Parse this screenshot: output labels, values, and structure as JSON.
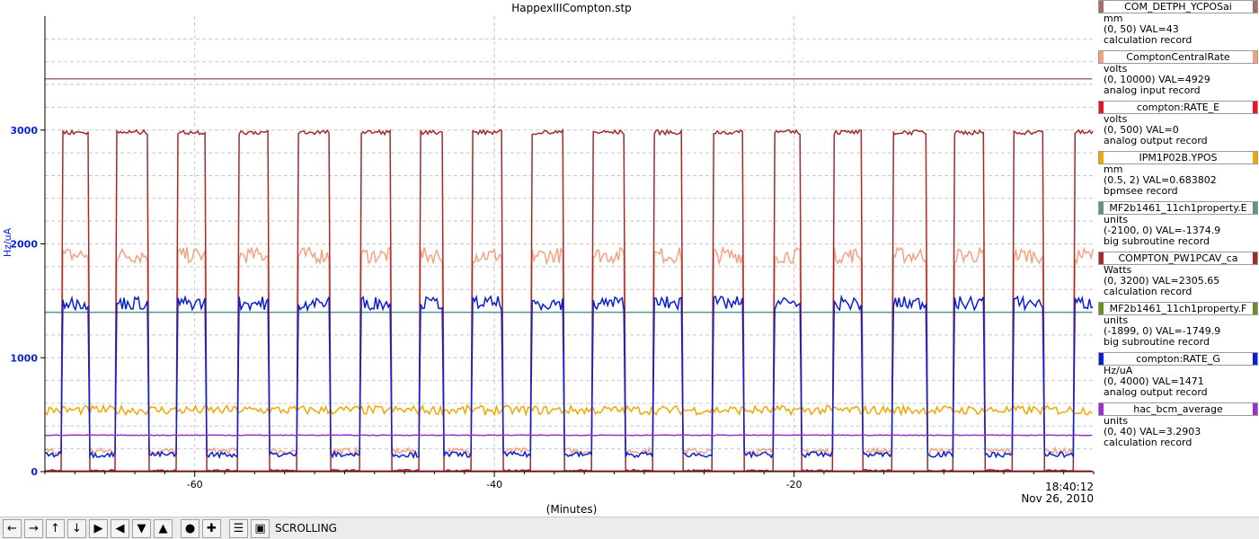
{
  "chart_data": {
    "type": "line",
    "title": "HappexIIICompton.stp",
    "xlabel": "(Minutes)",
    "ylabel": "Hz/uA",
    "xlim": [
      -70,
      0
    ],
    "ylim": [
      0,
      4000
    ],
    "x_ticks": [
      -60,
      -40,
      -20
    ],
    "y_ticks": [
      0,
      1000,
      2000,
      3000
    ],
    "time_label": "18:40:12",
    "date_label": "Nov 26, 2010",
    "grid": true,
    "legend_position": "right",
    "beam_on_intervals": [
      [
        -68.8,
        -67.1
      ],
      [
        -65.2,
        -63.1
      ],
      [
        -61.2,
        -59.2
      ],
      [
        -57.1,
        -55.0
      ],
      [
        -53.1,
        -51.0
      ],
      [
        -49.0,
        -46.9
      ],
      [
        -45.0,
        -43.4
      ],
      [
        -41.5,
        -39.5
      ],
      [
        -37.5,
        -35.4
      ],
      [
        -33.5,
        -31.3
      ],
      [
        -29.4,
        -27.5
      ],
      [
        -25.4,
        -23.4
      ],
      [
        -21.4,
        -19.5
      ],
      [
        -17.4,
        -15.5
      ],
      [
        -13.4,
        -11.2
      ],
      [
        -9.4,
        -7.3
      ],
      [
        -5.4,
        -3.3
      ],
      [
        -1.3,
        0
      ]
    ],
    "series": [
      {
        "name": "COM_DETPH_YCPOSai",
        "color": "#a56d6d",
        "units": "mm",
        "range": "(0, 50)",
        "val": "VAL=43",
        "record": "calculation record",
        "constant_y": 3450
      },
      {
        "name": "ComptonCentralRate",
        "color": "#f2a382",
        "units": "volts",
        "range": "(0, 10000)",
        "val": "VAL=4929",
        "record": "analog input record",
        "on_level": 1900,
        "off_level": 180
      },
      {
        "name": "compton:RATE_E",
        "color": "#e8141e",
        "units": "volts",
        "range": "(0, 500)",
        "val": "VAL=0",
        "record": "analog output record",
        "constant_y": 5
      },
      {
        "name": "IPM1P02B.YPOS",
        "color": "#f0a800",
        "units": "mm",
        "range": "(0.5, 2)",
        "val": "VAL=0.683802",
        "record": "bpmsee record",
        "constant_y": 540
      },
      {
        "name": "MF2b1461_11ch1property.E",
        "color": "#5a9490",
        "units": "units",
        "range": "(-2100, 0)",
        "val": "VAL=-1374.9",
        "record": "big subroutine record",
        "constant_y": 1400
      },
      {
        "name": "COMPTON_PW1PCAV_ca",
        "color": "#a52a2a",
        "units": "Watts",
        "range": "(0, 3200)",
        "val": "VAL=2305.65",
        "record": "calculation record",
        "on_level": 2980,
        "off_level": 10
      },
      {
        "name": "MF2b1461_11ch1property.F",
        "color": "#6b8e23",
        "units": "units",
        "range": "(-1899, 0)",
        "val": "VAL=-1749.9",
        "record": "big subroutine record"
      },
      {
        "name": "compton:RATE_G",
        "color": "#0a1fd6",
        "units": "Hz/uA",
        "range": "(0, 4000)",
        "val": "VAL=1471",
        "record": "analog output record",
        "on_level": 1480,
        "off_level": 150
      },
      {
        "name": "hac_bcm_average",
        "color": "#9b30d0",
        "units": "units",
        "range": "(0, 40)",
        "val": "VAL=3.2903",
        "record": "calculation record",
        "constant_y": 320
      }
    ]
  },
  "toolbar": {
    "status": "SCROLLING",
    "buttons": [
      "arrow-left-icon",
      "arrow-right-icon",
      "arrow-up-icon",
      "arrow-down-icon",
      "zoom-in-x-icon",
      "zoom-out-x-icon",
      "zoom-in-y-icon",
      "zoom-out-y-icon",
      "auto-scale-icon",
      "add-icon",
      "config-icon",
      "print-icon"
    ]
  }
}
